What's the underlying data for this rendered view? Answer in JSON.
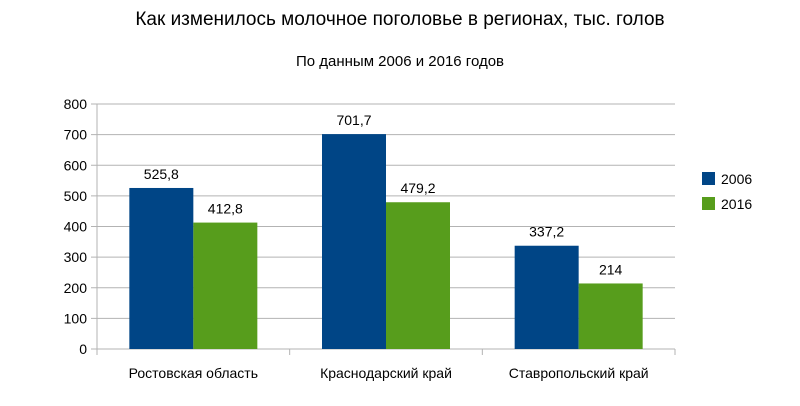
{
  "chart_data": {
    "type": "bar",
    "title": "Как изменилось молочное поголовье в регионах, тыс. голов",
    "subtitle": "По данным 2006 и 2016 годов",
    "categories": [
      "Ростовская область",
      "Краснодарский край",
      "Ставропольский край"
    ],
    "series": [
      {
        "name": "2006",
        "color": "#004586",
        "values": [
          525.8,
          701.7,
          337.2
        ],
        "labels": [
          "525,8",
          "701,7",
          "337,2"
        ]
      },
      {
        "name": "2016",
        "color": "#579D1C",
        "values": [
          412.8,
          479.2,
          214
        ],
        "labels": [
          "412,8",
          "479,2",
          "214"
        ]
      }
    ],
    "ylim": [
      0,
      800
    ],
    "yticks": [
      0,
      100,
      200,
      300,
      400,
      500,
      600,
      700,
      800
    ],
    "xlabel": "",
    "ylabel": "",
    "grid": true,
    "legend": "right"
  }
}
